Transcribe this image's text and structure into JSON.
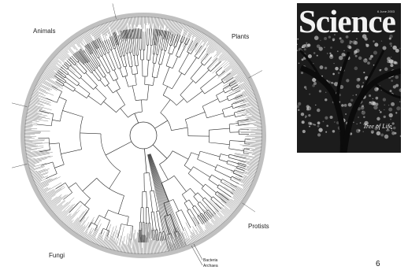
{
  "tree": {
    "labels": {
      "animals": "Animals",
      "plants": "Plants",
      "protists": "Protists",
      "fungi": "Fungi",
      "bacteria": "Bacteria",
      "archaea": "Archaea"
    },
    "colors": {
      "ring": "#8c8c8c",
      "branches": "#2a2a2a"
    }
  },
  "cover": {
    "masthead": "Science",
    "date": "6 June 2003",
    "caption": "Tree of Life"
  },
  "slide": {
    "number": "6"
  }
}
